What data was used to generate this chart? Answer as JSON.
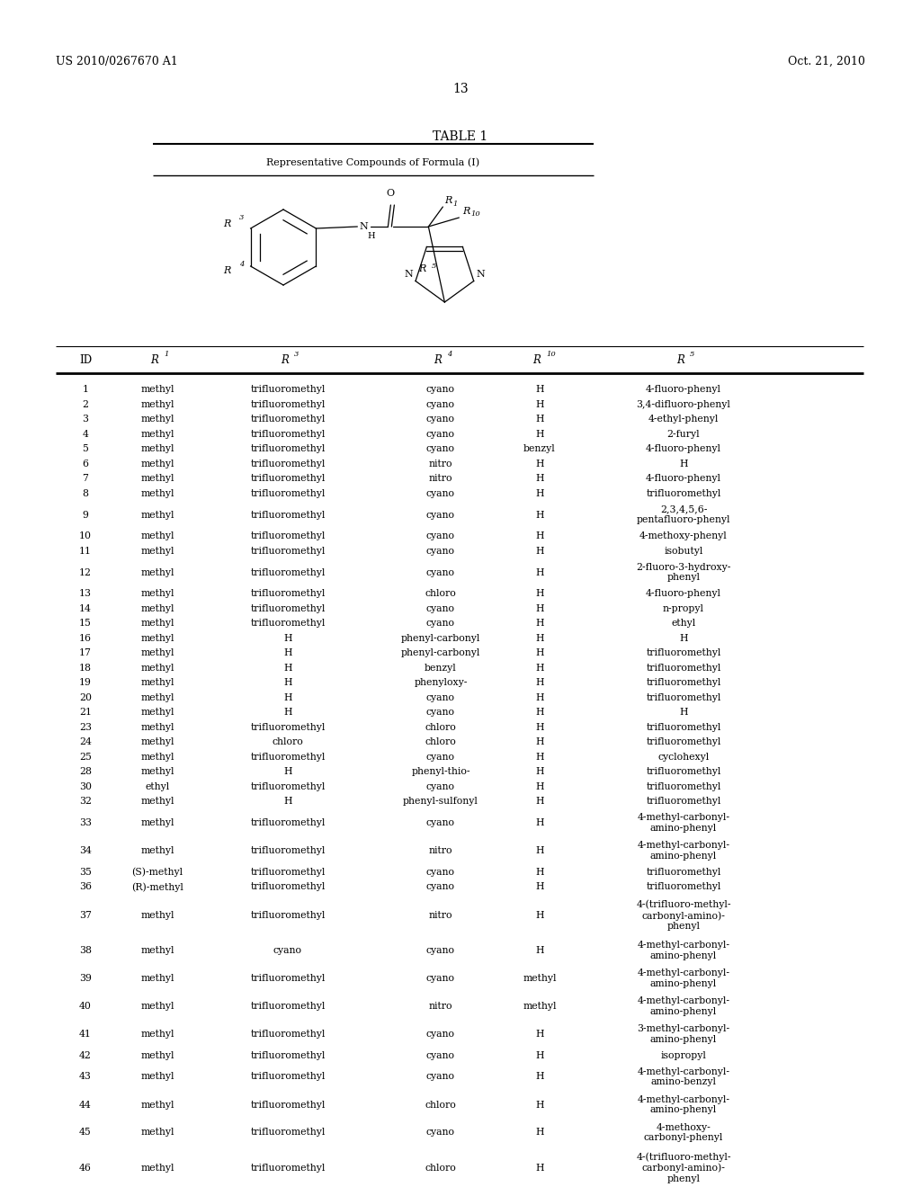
{
  "header_left": "US 2010/0267670 A1",
  "header_right": "Oct. 21, 2010",
  "page_number": "13",
  "table_title": "TABLE 1",
  "table_subtitle": "Representative Compounds of Formula (I)",
  "rows": [
    [
      "1",
      "methyl",
      "trifluoromethyl",
      "cyano",
      "H",
      "4-fluoro-phenyl"
    ],
    [
      "2",
      "methyl",
      "trifluoromethyl",
      "cyano",
      "H",
      "3,4-difluoro-phenyl"
    ],
    [
      "3",
      "methyl",
      "trifluoromethyl",
      "cyano",
      "H",
      "4-ethyl-phenyl"
    ],
    [
      "4",
      "methyl",
      "trifluoromethyl",
      "cyano",
      "H",
      "2-furyl"
    ],
    [
      "5",
      "methyl",
      "trifluoromethyl",
      "cyano",
      "benzyl",
      "4-fluoro-phenyl"
    ],
    [
      "6",
      "methyl",
      "trifluoromethyl",
      "nitro",
      "H",
      "H"
    ],
    [
      "7",
      "methyl",
      "trifluoromethyl",
      "nitro",
      "H",
      "4-fluoro-phenyl"
    ],
    [
      "8",
      "methyl",
      "trifluoromethyl",
      "cyano",
      "H",
      "trifluoromethyl"
    ],
    [
      "9",
      "methyl",
      "trifluoromethyl",
      "cyano",
      "H",
      "2,3,4,5,6-\npentafluoro-phenyl"
    ],
    [
      "10",
      "methyl",
      "trifluoromethyl",
      "cyano",
      "H",
      "4-methoxy-phenyl"
    ],
    [
      "11",
      "methyl",
      "trifluoromethyl",
      "cyano",
      "H",
      "isobutyl"
    ],
    [
      "12",
      "methyl",
      "trifluoromethyl",
      "cyano",
      "H",
      "2-fluoro-3-hydroxy-\nphenyl"
    ],
    [
      "13",
      "methyl",
      "trifluoromethyl",
      "chloro",
      "H",
      "4-fluoro-phenyl"
    ],
    [
      "14",
      "methyl",
      "trifluoromethyl",
      "cyano",
      "H",
      "n-propyl"
    ],
    [
      "15",
      "methyl",
      "trifluoromethyl",
      "cyano",
      "H",
      "ethyl"
    ],
    [
      "16",
      "methyl",
      "H",
      "phenyl-carbonyl",
      "H",
      "H"
    ],
    [
      "17",
      "methyl",
      "H",
      "phenyl-carbonyl",
      "H",
      "trifluoromethyl"
    ],
    [
      "18",
      "methyl",
      "H",
      "benzyl",
      "H",
      "trifluoromethyl"
    ],
    [
      "19",
      "methyl",
      "H",
      "phenyloxy-",
      "H",
      "trifluoromethyl"
    ],
    [
      "20",
      "methyl",
      "H",
      "cyano",
      "H",
      "trifluoromethyl"
    ],
    [
      "21",
      "methyl",
      "H",
      "cyano",
      "H",
      "H"
    ],
    [
      "23",
      "methyl",
      "trifluoromethyl",
      "chloro",
      "H",
      "trifluoromethyl"
    ],
    [
      "24",
      "methyl",
      "chloro",
      "chloro",
      "H",
      "trifluoromethyl"
    ],
    [
      "25",
      "methyl",
      "trifluoromethyl",
      "cyano",
      "H",
      "cyclohexyl"
    ],
    [
      "28",
      "methyl",
      "H",
      "phenyl-thio-",
      "H",
      "trifluoromethyl"
    ],
    [
      "30",
      "ethyl",
      "trifluoromethyl",
      "cyano",
      "H",
      "trifluoromethyl"
    ],
    [
      "32",
      "methyl",
      "H",
      "phenyl-sulfonyl",
      "H",
      "trifluoromethyl"
    ],
    [
      "33",
      "methyl",
      "trifluoromethyl",
      "cyano",
      "H",
      "4-methyl-carbonyl-\namino-phenyl"
    ],
    [
      "34",
      "methyl",
      "trifluoromethyl",
      "nitro",
      "H",
      "4-methyl-carbonyl-\namino-phenyl"
    ],
    [
      "35",
      "(S)-methyl",
      "trifluoromethyl",
      "cyano",
      "H",
      "trifluoromethyl"
    ],
    [
      "36",
      "(R)-methyl",
      "trifluoromethyl",
      "cyano",
      "H",
      "trifluoromethyl"
    ],
    [
      "37",
      "methyl",
      "trifluoromethyl",
      "nitro",
      "H",
      "4-(trifluoro-methyl-\ncarbonyl-amino)-\nphenyl"
    ],
    [
      "38",
      "methyl",
      "cyano",
      "cyano",
      "H",
      "4-methyl-carbonyl-\namino-phenyl"
    ],
    [
      "39",
      "methyl",
      "trifluoromethyl",
      "cyano",
      "methyl",
      "4-methyl-carbonyl-\namino-phenyl"
    ],
    [
      "40",
      "methyl",
      "trifluoromethyl",
      "nitro",
      "methyl",
      "4-methyl-carbonyl-\namino-phenyl"
    ],
    [
      "41",
      "methyl",
      "trifluoromethyl",
      "cyano",
      "H",
      "3-methyl-carbonyl-\namino-phenyl"
    ],
    [
      "42",
      "methyl",
      "trifluoromethyl",
      "cyano",
      "H",
      "isopropyl"
    ],
    [
      "43",
      "methyl",
      "trifluoromethyl",
      "cyano",
      "H",
      "4-methyl-carbonyl-\namino-benzyl"
    ],
    [
      "44",
      "methyl",
      "trifluoromethyl",
      "chloro",
      "H",
      "4-methyl-carbonyl-\namino-phenyl"
    ],
    [
      "45",
      "methyl",
      "trifluoromethyl",
      "cyano",
      "H",
      "4-methoxy-\ncarbonyl-phenyl"
    ],
    [
      "46",
      "methyl",
      "trifluoromethyl",
      "chloro",
      "H",
      "4-(trifluoro-methyl-\ncarbonyl-amino)-\nphenyl"
    ]
  ],
  "bg_color": "#ffffff",
  "text_color": "#000000"
}
